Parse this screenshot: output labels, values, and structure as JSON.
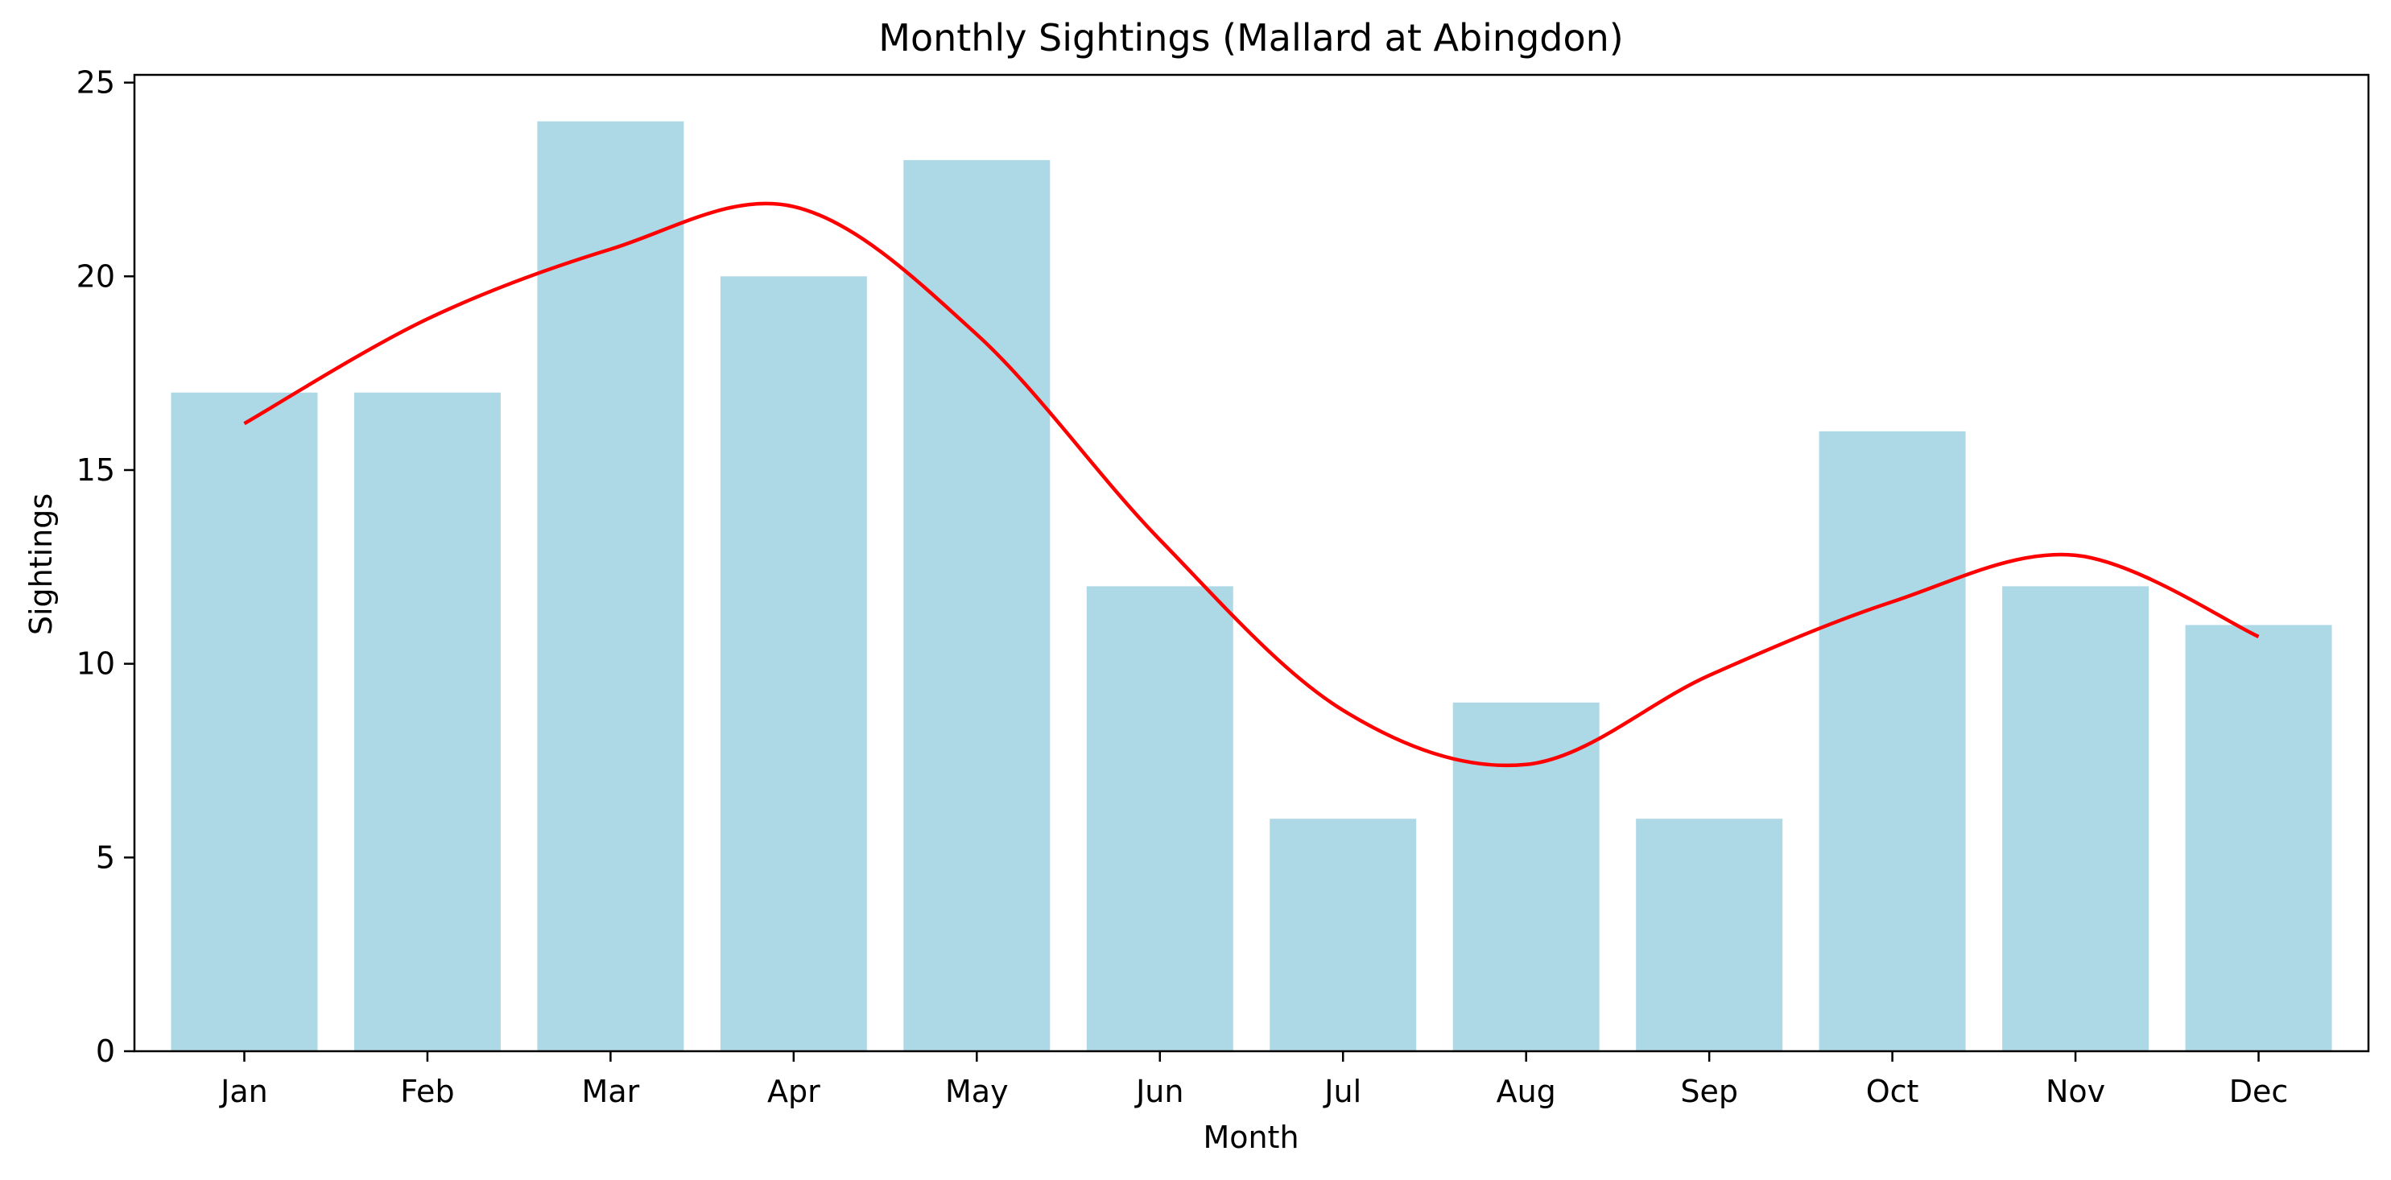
{
  "chart_data": {
    "type": "bar",
    "title": "Monthly Sightings (Mallard at Abingdon)",
    "xlabel": "Month",
    "ylabel": "Sightings",
    "categories": [
      "Jan",
      "Feb",
      "Mar",
      "Apr",
      "May",
      "Jun",
      "Jul",
      "Aug",
      "Sep",
      "Oct",
      "Nov",
      "Dec"
    ],
    "series": [
      {
        "type": "bar",
        "values": [
          17,
          17,
          24,
          20,
          23,
          12,
          6,
          9,
          6,
          16,
          12,
          11
        ],
        "color": "#add8e6"
      },
      {
        "type": "line",
        "smooth": true,
        "values": [
          16.2,
          18.9,
          20.7,
          21.8,
          18.5,
          13.2,
          8.8,
          7.4,
          9.7,
          11.6,
          12.8,
          10.7
        ],
        "color": "#ff0000"
      }
    ],
    "ylim": [
      0,
      25.2
    ],
    "yticks": [
      0,
      5,
      10,
      15,
      20,
      25
    ],
    "grid": false,
    "legend": "none"
  }
}
